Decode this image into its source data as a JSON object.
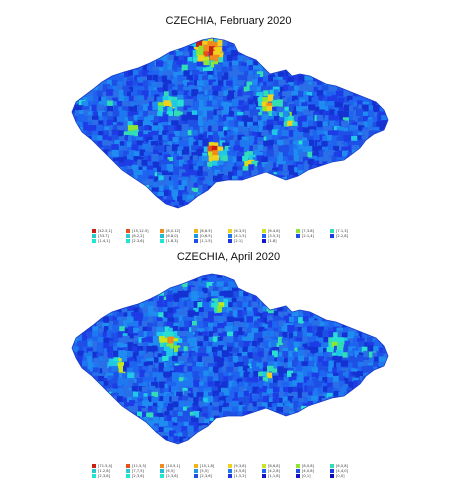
{
  "maps": [
    {
      "title": "CZECHIA, February 2020",
      "legend": [
        {
          "text": [
            "[42.5,1]",
            "[33.7]",
            "[1.4,1]"
          ],
          "colors": [
            "#c81e14",
            "#28c8c8",
            "#1ee6d2"
          ]
        },
        {
          "text": [
            "[15,12.5]",
            "[8.2,2]",
            "[2.3,6]"
          ],
          "colors": [
            "#e6501e",
            "#32c8d2",
            "#1ee6d2"
          ]
        },
        {
          "text": [
            "[8,0.12]",
            "[6.8,0]",
            "[1.8,3]"
          ],
          "colors": [
            "#f08c1e",
            "#1ebed2",
            "#1ee6d2"
          ]
        },
        {
          "text": [
            "[8,6.5]",
            "[0,6.5]",
            "[1,1.5]"
          ],
          "colors": [
            "#f0b414",
            "#1e96e6",
            "#1e50e6"
          ]
        },
        {
          "text": [
            "[6.3,5]",
            "[4.1,5]",
            "[2.1]"
          ],
          "colors": [
            "#f0d21e",
            "#1e78f0",
            "#1e32e6"
          ]
        },
        {
          "text": [
            "[6.4,8]",
            "[3.5,3]",
            "[1.8]"
          ],
          "colors": [
            "#c8e61e",
            "#1e64f0",
            "#1414c8"
          ]
        },
        {
          "text": [
            "[7,3.8]",
            "[2.1,4]"
          ],
          "colors": [
            "#8ce632",
            "#1e50e6"
          ]
        },
        {
          "text": [
            "[7.1,3]",
            "[2.2,8]"
          ],
          "colors": [
            "#32dcb4",
            "#1e3ce6"
          ]
        }
      ]
    },
    {
      "title": "CZECHIA, April 2020",
      "legend": [
        {
          "text": [
            "[71.5,4]",
            "[1.2,8]",
            "[2,3,8]"
          ],
          "colors": [
            "#c81e14",
            "#28c8c8",
            "#1ee6d2"
          ]
        },
        {
          "text": [
            "[11,5,5]",
            "[7,7,5]",
            "[2,3,6]"
          ],
          "colors": [
            "#e6501e",
            "#32c8d2",
            "#1ee6d2"
          ]
        },
        {
          "text": [
            "[10,5,1]",
            "[6,5]",
            "[2,3,6]"
          ],
          "colors": [
            "#f08c1e",
            "#1ebed2",
            "#1ee6d2"
          ]
        },
        {
          "text": [
            "[10,1,8]",
            "[5,5]",
            "[2,3,6]"
          ],
          "colors": [
            "#f0b414",
            "#1e96e6",
            "#1e50e6"
          ]
        },
        {
          "text": [
            "[9,3,8]",
            "[4,5,8]",
            "[1,5,2]"
          ],
          "colors": [
            "#f0d21e",
            "#1e78f0",
            "#1e32e6"
          ]
        },
        {
          "text": [
            "[8,6,8]",
            "[4,2,8]",
            "[1,1,8]"
          ],
          "colors": [
            "#c8e61e",
            "#1e64f0",
            "#1414c8"
          ]
        },
        {
          "text": [
            "[8,0,8]",
            "[4,0,8]",
            "[0,1]"
          ],
          "colors": [
            "#8ce632",
            "#1e50e6",
            "#1414c8"
          ]
        },
        {
          "text": [
            "[6,0,8]",
            "[4,4,0]",
            "[0,0]"
          ],
          "colors": [
            "#32dcb4",
            "#1e3ce6",
            "#0a0ab4"
          ]
        }
      ]
    }
  ],
  "palette": {
    "base_blues": [
      "#1e64f0",
      "#1e50e6",
      "#1e78f0",
      "#1e3ce6",
      "#1e8cf0",
      "#2a6ee8",
      "#1432d2"
    ],
    "cyans": [
      "#1ec8e6",
      "#28e0d2",
      "#32dcb4"
    ],
    "greens": [
      "#8ce632",
      "#c8e61e"
    ],
    "warm": [
      "#f0d21e",
      "#f08c1e",
      "#e6501e",
      "#c81e14"
    ]
  }
}
